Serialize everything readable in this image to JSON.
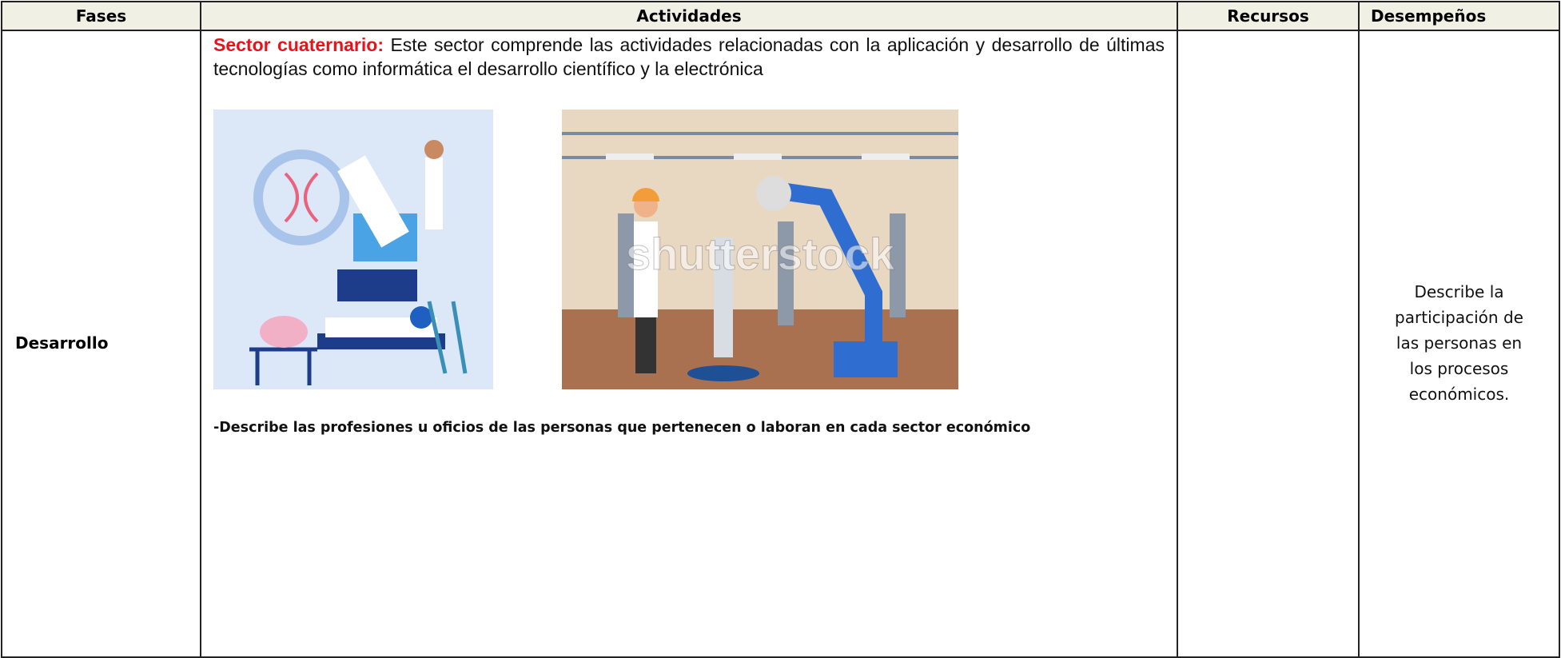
{
  "header": {
    "columns": [
      "Fases",
      "Actividades",
      "Recursos",
      "Desempeños"
    ]
  },
  "rows": [
    {
      "fase": "Desarrollo",
      "actividades": {
        "title": "Sector cuaternario:",
        "text": "Este sector comprende las actividades relacionadas con la aplicación y desarrollo de últimas tecnologías como informática el desarrollo científico y la electrónica",
        "watermark": "shutterstock",
        "instruction": "-Describe las profesiones u oficios de las personas que pertenecen o laboran en cada sector económico"
      },
      "recursos": null,
      "desempeno": "Describe la participación de las personas en los procesos económicos."
    }
  ]
}
